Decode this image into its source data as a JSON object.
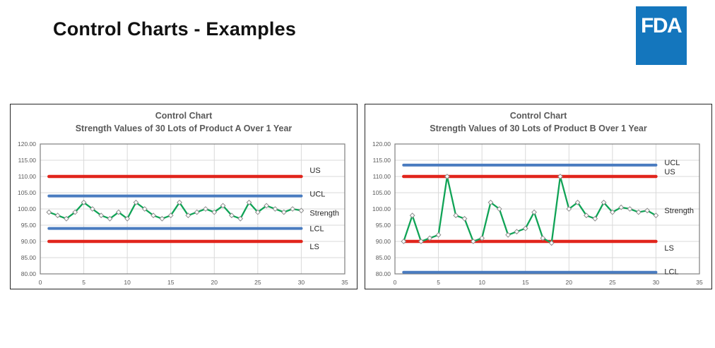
{
  "header": {
    "title": "Control Charts - Examples",
    "logo_text": "FDA",
    "logo_color": "#1476bd"
  },
  "colors": {
    "spec_line": "#e1251c",
    "control_line": "#4a7cc0",
    "series_line": "#10a356",
    "marker_fill": "#ffffff",
    "marker_stroke": "#8c8c8c",
    "grid": "#d9d9d9",
    "plot_border": "#7f7f7f",
    "axis_text": "#595959",
    "title_text": "#595959",
    "label_text": "#262626"
  },
  "chart_data": [
    {
      "type": "line",
      "title": "Control Chart",
      "subtitle": "Strength Values of 30 Lots of Product A Over 1 Year",
      "xlim": [
        0,
        35
      ],
      "ylim": [
        80,
        120
      ],
      "xticks": [
        0,
        5,
        10,
        15,
        20,
        25,
        30,
        35
      ],
      "yticks": [
        80,
        85,
        90,
        95,
        100,
        105,
        110,
        115,
        120
      ],
      "ytick_format": "0.00",
      "grid": true,
      "x_start": 1,
      "series": [
        {
          "name": "Strength",
          "values": [
            99,
            98,
            97,
            99,
            102,
            100,
            98,
            97,
            99,
            97,
            102,
            100,
            98,
            97,
            98,
            102,
            98,
            99,
            100,
            99,
            101,
            98,
            97,
            102,
            99,
            101,
            100,
            99,
            100,
            99.5
          ],
          "label_dy": 7
        }
      ],
      "ref_lines": [
        {
          "label": "US",
          "value": 110,
          "color_key": "spec_line",
          "label_dy": -5
        },
        {
          "label": "UCL",
          "value": 104,
          "color_key": "control_line",
          "label_dy": 1
        },
        {
          "label": "LCL",
          "value": 94,
          "color_key": "control_line",
          "label_dy": 4
        },
        {
          "label": "LS",
          "value": 90,
          "color_key": "spec_line",
          "label_dy": 11
        }
      ]
    },
    {
      "type": "line",
      "title": "Control Chart",
      "subtitle": "Strength Values of 30 Lots of Product B Over 1 Year",
      "xlim": [
        0,
        35
      ],
      "ylim": [
        80,
        120
      ],
      "xticks": [
        0,
        5,
        10,
        15,
        20,
        25,
        30,
        35
      ],
      "yticks": [
        80,
        85,
        90,
        95,
        100,
        105,
        110,
        115,
        120
      ],
      "ytick_format": "0.00",
      "grid": true,
      "x_start": 1,
      "series": [
        {
          "name": "Strength",
          "values": [
            90,
            98,
            90,
            91,
            92,
            110,
            98,
            97,
            90,
            91,
            102,
            100,
            92,
            93,
            94,
            99,
            91,
            89.5,
            110,
            100,
            102,
            98,
            97,
            102,
            99,
            100.5,
            100,
            99,
            99.5,
            98
          ],
          "label_dy": -3
        }
      ],
      "ref_lines": [
        {
          "label": "UCL",
          "value": 113.5,
          "color_key": "control_line",
          "label_dy": 0
        },
        {
          "label": "US",
          "value": 110,
          "color_key": "spec_line",
          "label_dy": -3
        },
        {
          "label": "LS",
          "value": 90,
          "color_key": "spec_line",
          "label_dy": 13
        },
        {
          "label": "LCL",
          "value": 80.5,
          "color_key": "control_line",
          "label_dy": 3
        }
      ]
    }
  ]
}
